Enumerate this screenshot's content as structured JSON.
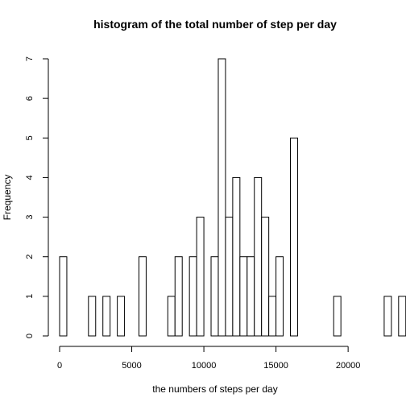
{
  "chart_data": {
    "type": "bar",
    "title": "histogram of the total number of step per day",
    "xlabel": "the numbers of steps per day",
    "ylabel": "Frequency",
    "bin_width": 500,
    "x_start": 0,
    "xlim": [
      0,
      21500
    ],
    "ylim": [
      0,
      7
    ],
    "x_ticks": [
      0,
      5000,
      10000,
      15000,
      20000
    ],
    "y_ticks": [
      0,
      1,
      2,
      3,
      4,
      5,
      6,
      7
    ],
    "values": [
      2,
      0,
      0,
      0,
      1,
      0,
      1,
      0,
      1,
      0,
      0,
      2,
      0,
      0,
      0,
      1,
      2,
      0,
      2,
      3,
      0,
      2,
      7,
      3,
      4,
      2,
      2,
      4,
      3,
      1,
      2,
      0,
      5,
      0,
      0,
      0,
      0,
      0,
      1,
      0,
      0,
      0,
      0,
      0,
      0,
      1,
      0,
      1
    ],
    "bar_fill": "#ffffff",
    "bar_stroke": "#000000",
    "grid": false,
    "legend": "none"
  }
}
